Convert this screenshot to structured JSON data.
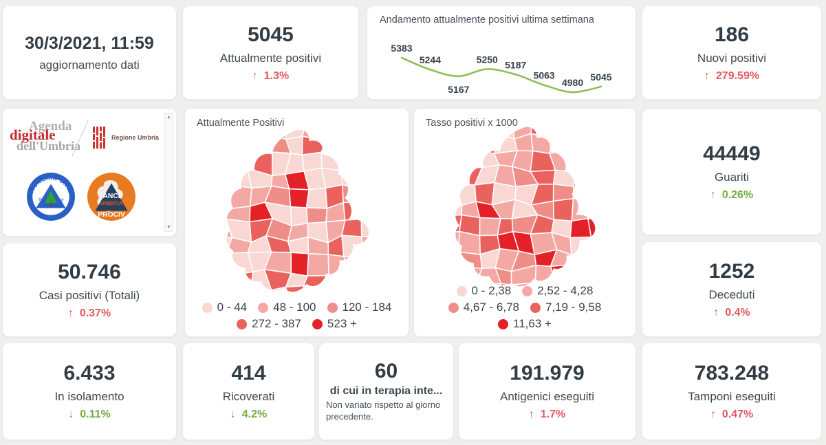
{
  "colors": {
    "negative": "#e0595e",
    "positive": "#70ad3f",
    "line": "#8fbe56",
    "card_bg": "#ffffff",
    "page_bg": "#f1efee",
    "text_dark": "#323c44"
  },
  "stats": {
    "updated": {
      "value": "30/3/2021, 11:59",
      "label": "aggiornamento dati"
    },
    "attualmente_positivi": {
      "value": "5045",
      "label": "Attualmente positivi",
      "arrow": "↑",
      "delta": "1.3%"
    },
    "nuovi_positivi": {
      "value": "186",
      "label": "Nuovi positivi",
      "arrow": "↑",
      "delta": "279.59%"
    },
    "guariti": {
      "value": "44449",
      "label": "Guariti",
      "arrow": "↑",
      "delta": "0.26%"
    },
    "casi_totali": {
      "value": "50.746",
      "label": "Casi positivi (Totali)",
      "arrow": "↑",
      "delta": "0.37%"
    },
    "deceduti": {
      "value": "1252",
      "label": "Deceduti",
      "arrow": "↑",
      "delta": "0.4%"
    },
    "isolamento": {
      "value": "6.433",
      "label": "In isolamento",
      "arrow": "↓",
      "delta": "0.11%"
    },
    "ricoverati": {
      "value": "414",
      "label": "Ricoverati",
      "arrow": "↓",
      "delta": "4.2%"
    },
    "terapia": {
      "value": "60",
      "label": "di cui in terapia inte...",
      "note": "Non variato rispetto al giorno precedente."
    },
    "antigenici": {
      "value": "191.979",
      "label": "Antigenici eseguiti",
      "arrow": "↑",
      "delta": "1.7%"
    },
    "tamponi": {
      "value": "783.248",
      "label": "Tamponi eseguiti",
      "arrow": "↑",
      "delta": "0.47%"
    }
  },
  "chart_data": {
    "type": "line",
    "title": "Andamento attualmente positivi ultima settimana",
    "values": [
      5383,
      5244,
      5167,
      5250,
      5187,
      5063,
      4980,
      5045
    ],
    "line_color": "#8fbe56",
    "data_labels_shown": true,
    "axes_hidden": true
  },
  "maps": {
    "palette": [
      "#f9d7d3",
      "#f4a8a4",
      "#ef8d89",
      "#ea625e",
      "#e32126"
    ],
    "attualmente": {
      "title": "Attualmente Positivi",
      "legend": [
        "0 - 44",
        "48 - 100",
        "120 - 184",
        "272 - 387",
        "523 +"
      ]
    },
    "tasso": {
      "title": "Tasso positivi x 1000",
      "legend": [
        "0 - 2,38",
        "2,52 - 4,28",
        "4,67 - 6,78",
        "7,19 - 9,58",
        "11,63 +"
      ]
    }
  },
  "logos": {
    "agenda_line1": "Agenda",
    "agenda_line2": "digitale",
    "agenda_line3": "dell'Umbria",
    "regione": "Regione Umbria",
    "protezione_top": "Protezione Civile",
    "protezione_bottom": "Regione Umbria",
    "anci_1": "ANCI",
    "anci_2": "UMBRIA",
    "anci_3": "PROCIV"
  }
}
